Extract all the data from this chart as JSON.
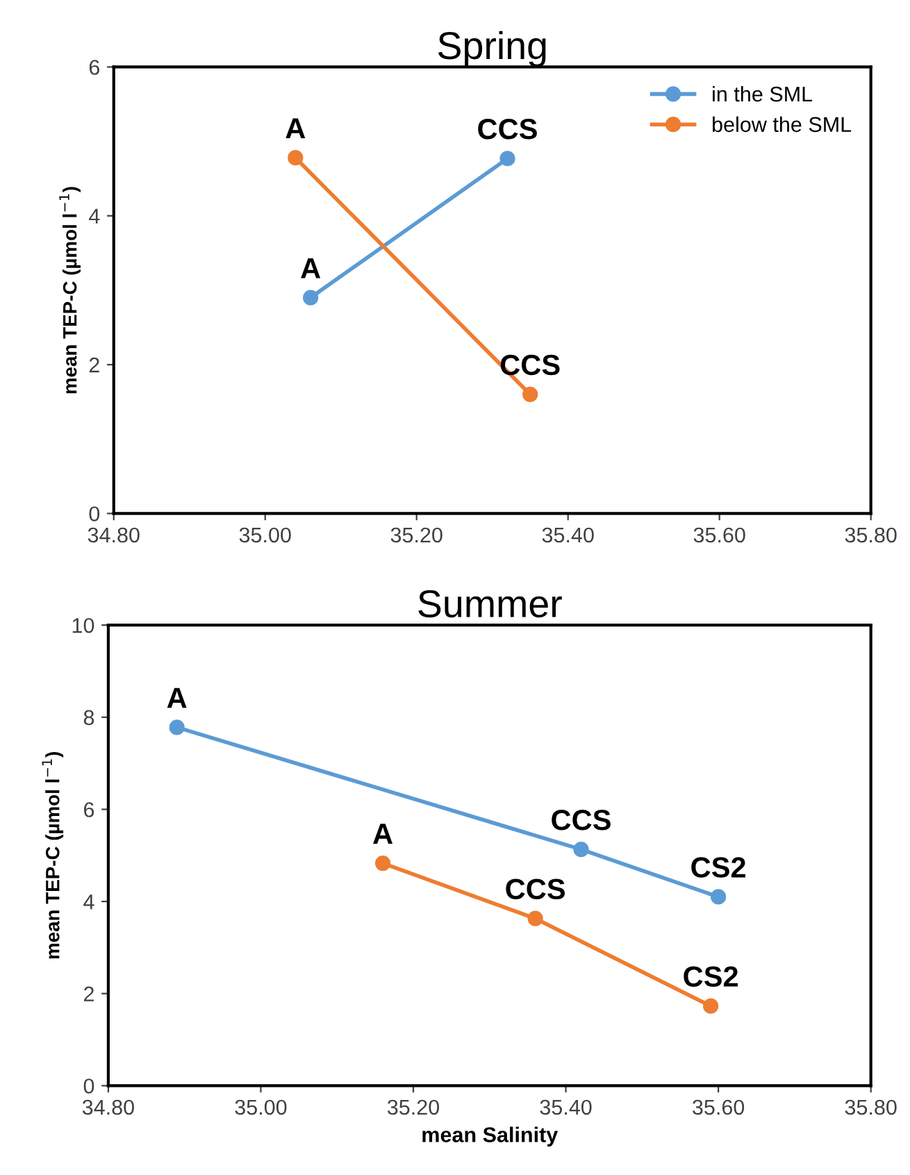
{
  "chart_data": [
    {
      "type": "line",
      "title": "Spring",
      "ylabel": "mean TEP-C (µmol l$^{−1}$)",
      "xlim": [
        34.8,
        35.8
      ],
      "xticks": [
        {
          "value": 34.8,
          "label": "34.80"
        },
        {
          "value": 35.0,
          "label": "35.00"
        },
        {
          "value": 35.2,
          "label": "35.20"
        },
        {
          "value": 35.4,
          "label": "35.40"
        },
        {
          "value": 35.6,
          "label": "35.60"
        },
        {
          "value": 35.8,
          "label": "35.80"
        }
      ],
      "ylim": [
        0,
        6
      ],
      "yticks": [
        0,
        2,
        4,
        6
      ],
      "grid": false,
      "legend": "top right",
      "marker": "circle",
      "line_style": "solid",
      "series": [
        {
          "name": "in the SML",
          "color": "#5b9bd5",
          "x": [
            35.06,
            35.32
          ],
          "values": [
            2.9,
            4.77
          ]
        },
        {
          "name": "below the SML",
          "color": "#ed7d31",
          "x": [
            35.04,
            35.35
          ],
          "values": [
            4.78,
            1.6
          ]
        }
      ],
      "annotations": [
        {
          "text": "A",
          "x": 35.06,
          "y": 2.9
        },
        {
          "text": "CCS",
          "x": 35.32,
          "y": 4.77
        },
        {
          "text": "A",
          "x": 35.04,
          "y": 4.78
        },
        {
          "text": "CCS",
          "x": 35.35,
          "y": 1.6
        }
      ]
    },
    {
      "type": "line",
      "title": "Summer",
      "xlabel": "mean Salinity",
      "ylabel": "mean TEP-C (µmol l$^{−1}$)",
      "xlim": [
        34.8,
        35.8
      ],
      "xticks": [
        {
          "value": 34.8,
          "label": "34.80"
        },
        {
          "value": 35.0,
          "label": "35.00"
        },
        {
          "value": 35.2,
          "label": "35.20"
        },
        {
          "value": 35.4,
          "label": "35.40"
        },
        {
          "value": 35.6,
          "label": "35.60"
        },
        {
          "value": 35.8,
          "label": "35.80"
        }
      ],
      "ylim": [
        0,
        10
      ],
      "yticks": [
        0,
        2,
        4,
        6,
        8,
        10
      ],
      "grid": false,
      "legend": false,
      "marker": "circle",
      "line_style": "solid",
      "series": [
        {
          "color": "#5b9bd5",
          "x": [
            34.89,
            35.42,
            35.6
          ],
          "values": [
            7.78,
            5.13,
            4.1
          ]
        },
        {
          "color": "#ed7d31",
          "x": [
            35.16,
            35.36,
            35.59
          ],
          "values": [
            4.83,
            3.63,
            1.73
          ]
        }
      ],
      "annotations": [
        {
          "text": "A",
          "x": 34.89,
          "y": 7.78
        },
        {
          "text": "CCS",
          "x": 35.42,
          "y": 5.13
        },
        {
          "text": "CS2",
          "x": 35.6,
          "y": 4.1
        },
        {
          "text": "A",
          "x": 35.16,
          "y": 4.83
        },
        {
          "text": "CCS",
          "x": 35.36,
          "y": 3.63
        },
        {
          "text": "CS2",
          "x": 35.59,
          "y": 1.73
        }
      ]
    }
  ]
}
